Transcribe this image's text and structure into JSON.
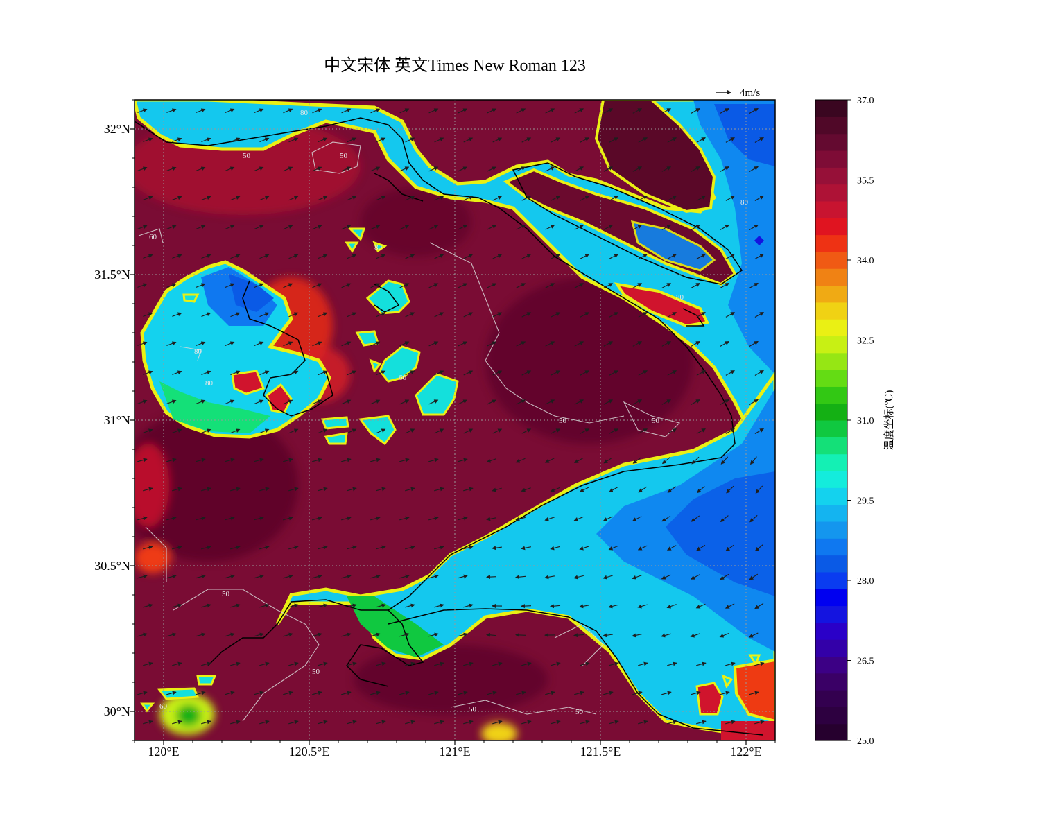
{
  "title": "中文宋体 英文Times New Roman 123",
  "colors": {
    "land_dark": "#6b0a2e",
    "land_mid": "#8e1038",
    "land_warm": "#d0142d",
    "hot": "#ee3a12",
    "water_cyan": "#14c8ee",
    "water_blue": "#0f88f0",
    "water_deep": "#0a5ae6",
    "coastline": "#000000",
    "contour": "#d9d9d9",
    "wind_arrow": "#1e1e1e",
    "grid": "#999999"
  },
  "wind_reference": {
    "label": "4m/s",
    "speed_ms": 4
  },
  "map": {
    "extent": {
      "lon_min": 119.9,
      "lon_max": 122.1,
      "lat_min": 29.9,
      "lat_max": 32.1
    },
    "lon_ticks": [
      {
        "value": 120.0,
        "label": "120°E"
      },
      {
        "value": 120.5,
        "label": "120.5°E"
      },
      {
        "value": 121.0,
        "label": "121°E"
      },
      {
        "value": 121.5,
        "label": "121.5°E"
      },
      {
        "value": 122.0,
        "label": "122°E"
      }
    ],
    "lat_ticks": [
      {
        "value": 30.0,
        "label": "30°N"
      },
      {
        "value": 30.5,
        "label": "30.5°N"
      },
      {
        "value": 31.0,
        "label": "31°N"
      },
      {
        "value": 31.5,
        "label": "31.5°N"
      },
      {
        "value": 32.0,
        "label": "32°N"
      }
    ],
    "gridlines": "dotted",
    "contour_labels": [
      "50",
      "60",
      "80"
    ]
  },
  "colorbar": {
    "label": "温度坐标(℃)",
    "min": 25.0,
    "max": 37.0,
    "ticks": [
      "25.0",
      "26.5",
      "28.0",
      "29.5",
      "31.0",
      "32.5",
      "34.0",
      "35.5",
      "37.0"
    ],
    "colors": [
      "#26002e",
      "#2d0040",
      "#33004f",
      "#3a0066",
      "#3c0085",
      "#3300a8",
      "#2a00c8",
      "#1414e0",
      "#0000f0",
      "#0a3cf0",
      "#0a5ae6",
      "#0f78f0",
      "#1496ee",
      "#14b4f0",
      "#14d2ee",
      "#14ecdc",
      "#14f0b4",
      "#14e078",
      "#10c840",
      "#14b014",
      "#32c814",
      "#64dc14",
      "#96e614",
      "#c8f014",
      "#eaf014",
      "#f0d214",
      "#f0aa14",
      "#f08214",
      "#f05a14",
      "#ee3214",
      "#e01420",
      "#c81430",
      "#ae1236",
      "#961038",
      "#7e0c36",
      "#640a30",
      "#500828",
      "#3a0620"
    ]
  }
}
